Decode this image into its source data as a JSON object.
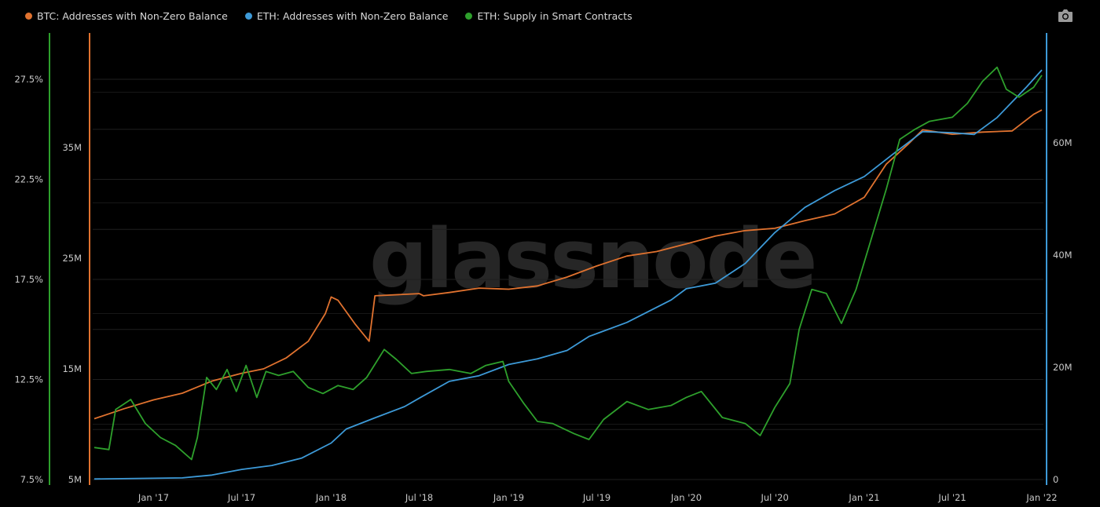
{
  "legend": [
    {
      "label": "BTC: Addresses with Non-Zero Balance",
      "color": "#e0722f"
    },
    {
      "label": "ETH: Addresses with Non-Zero Balance",
      "color": "#3d9ad8"
    },
    {
      "label": "ETH: Supply in Smart Contracts",
      "color": "#2ea02c"
    }
  ],
  "watermark": "glassnode",
  "camera_icon": "camera-icon",
  "chart_data": {
    "type": "line",
    "x_ticks": [
      "Jan '17",
      "Jul '17",
      "Jan '18",
      "Jul '18",
      "Jan '19",
      "Jul '19",
      "Jan '20",
      "Jul '20",
      "Jan '21",
      "Jul '21",
      "Jan '22"
    ],
    "y_axes": {
      "eth_supply_pct": {
        "ticks": [
          "7.5%",
          "12.5%",
          "17.5%",
          "22.5%",
          "27.5%"
        ],
        "range": [
          7.5,
          27.5
        ]
      },
      "btc_addresses": {
        "ticks": [
          "5M",
          "15M",
          "25M",
          "35M"
        ],
        "range": [
          5,
          35
        ]
      },
      "eth_addresses": {
        "ticks": [
          "0",
          "20M",
          "40M",
          "60M"
        ],
        "range": [
          0,
          60
        ]
      }
    },
    "series": [
      {
        "name": "BTC: Addresses with Non-Zero Balance",
        "axis": "btc_addresses",
        "color": "#e0722f",
        "points": [
          [
            "2016-09-01",
            10.5
          ],
          [
            "2016-11-01",
            11.4
          ],
          [
            "2017-01-01",
            12.2
          ],
          [
            "2017-03-01",
            12.8
          ],
          [
            "2017-05-01",
            13.9
          ],
          [
            "2017-07-01",
            14.6
          ],
          [
            "2017-08-15",
            15.0
          ],
          [
            "2017-10-01",
            16.0
          ],
          [
            "2017-11-15",
            17.5
          ],
          [
            "2017-12-20",
            20.0
          ],
          [
            "2018-01-01",
            21.5
          ],
          [
            "2018-01-15",
            21.2
          ],
          [
            "2018-02-20",
            19.0
          ],
          [
            "2018-03-20",
            17.5
          ],
          [
            "2018-04-01",
            21.6
          ],
          [
            "2018-07-01",
            21.8
          ],
          [
            "2018-07-10",
            21.6
          ],
          [
            "2018-09-01",
            21.9
          ],
          [
            "2018-11-01",
            22.3
          ],
          [
            "2019-01-01",
            22.2
          ],
          [
            "2019-03-01",
            22.5
          ],
          [
            "2019-05-01",
            23.3
          ],
          [
            "2019-07-01",
            24.3
          ],
          [
            "2019-09-01",
            25.2
          ],
          [
            "2019-11-01",
            25.6
          ],
          [
            "2020-01-01",
            26.3
          ],
          [
            "2020-03-01",
            27.0
          ],
          [
            "2020-05-01",
            27.5
          ],
          [
            "2020-07-01",
            27.7
          ],
          [
            "2020-09-01",
            28.4
          ],
          [
            "2020-11-01",
            29.0
          ],
          [
            "2021-01-01",
            30.5
          ],
          [
            "2021-02-15",
            33.5
          ],
          [
            "2021-04-01",
            35.3
          ],
          [
            "2021-05-01",
            36.6
          ],
          [
            "2021-06-01",
            36.4
          ],
          [
            "2021-07-01",
            36.2
          ],
          [
            "2021-09-01",
            36.4
          ],
          [
            "2021-11-01",
            36.5
          ],
          [
            "2021-12-15",
            38.0
          ],
          [
            "2022-01-01",
            38.4
          ]
        ]
      },
      {
        "name": "ETH: Addresses with Non-Zero Balance",
        "axis": "eth_addresses",
        "color": "#3d9ad8",
        "points": [
          [
            "2016-09-01",
            0.1
          ],
          [
            "2017-03-01",
            0.3
          ],
          [
            "2017-05-01",
            0.8
          ],
          [
            "2017-07-01",
            1.8
          ],
          [
            "2017-09-01",
            2.5
          ],
          [
            "2017-11-01",
            3.8
          ],
          [
            "2018-01-01",
            6.5
          ],
          [
            "2018-02-01",
            9.0
          ],
          [
            "2018-04-01",
            11.0
          ],
          [
            "2018-06-01",
            13.0
          ],
          [
            "2018-07-01",
            14.5
          ],
          [
            "2018-09-01",
            17.5
          ],
          [
            "2018-11-01",
            18.5
          ],
          [
            "2019-01-01",
            20.5
          ],
          [
            "2019-03-01",
            21.5
          ],
          [
            "2019-05-01",
            23.0
          ],
          [
            "2019-06-15",
            25.5
          ],
          [
            "2019-09-01",
            28.0
          ],
          [
            "2019-12-01",
            32.0
          ],
          [
            "2020-01-01",
            34.0
          ],
          [
            "2020-03-01",
            35.0
          ],
          [
            "2020-05-01",
            38.5
          ],
          [
            "2020-07-01",
            44.0
          ],
          [
            "2020-09-01",
            48.5
          ],
          [
            "2020-11-01",
            51.5
          ],
          [
            "2021-01-01",
            54.0
          ],
          [
            "2021-03-01",
            58.0
          ],
          [
            "2021-05-01",
            62.0
          ],
          [
            "2021-07-01",
            61.8
          ],
          [
            "2021-08-15",
            61.5
          ],
          [
            "2021-10-01",
            64.5
          ],
          [
            "2021-12-01",
            70.0
          ],
          [
            "2022-01-01",
            73.0
          ]
        ]
      },
      {
        "name": "ETH: Supply in Smart Contracts",
        "axis": "eth_supply_pct",
        "color": "#2ea02c",
        "points": [
          [
            "2016-09-01",
            9.1
          ],
          [
            "2016-10-01",
            9.0
          ],
          [
            "2016-10-15",
            11.0
          ],
          [
            "2016-11-15",
            11.5
          ],
          [
            "2016-12-15",
            10.3
          ],
          [
            "2017-01-15",
            9.6
          ],
          [
            "2017-02-15",
            9.2
          ],
          [
            "2017-03-20",
            8.5
          ],
          [
            "2017-04-01",
            9.6
          ],
          [
            "2017-04-20",
            12.6
          ],
          [
            "2017-05-10",
            12.0
          ],
          [
            "2017-06-01",
            13.0
          ],
          [
            "2017-06-20",
            11.9
          ],
          [
            "2017-07-10",
            13.2
          ],
          [
            "2017-08-01",
            11.6
          ],
          [
            "2017-08-20",
            12.9
          ],
          [
            "2017-09-15",
            12.7
          ],
          [
            "2017-10-15",
            12.9
          ],
          [
            "2017-11-15",
            12.1
          ],
          [
            "2017-12-15",
            11.8
          ],
          [
            "2018-01-15",
            12.2
          ],
          [
            "2018-02-15",
            12.0
          ],
          [
            "2018-03-15",
            12.6
          ],
          [
            "2018-04-20",
            14.0
          ],
          [
            "2018-05-15",
            13.5
          ],
          [
            "2018-06-15",
            12.8
          ],
          [
            "2018-07-15",
            12.9
          ],
          [
            "2018-09-01",
            13.0
          ],
          [
            "2018-10-15",
            12.8
          ],
          [
            "2018-11-15",
            13.2
          ],
          [
            "2018-12-20",
            13.4
          ],
          [
            "2019-01-01",
            12.4
          ],
          [
            "2019-02-01",
            11.3
          ],
          [
            "2019-03-01",
            10.4
          ],
          [
            "2019-04-01",
            10.3
          ],
          [
            "2019-05-15",
            9.8
          ],
          [
            "2019-06-15",
            9.5
          ],
          [
            "2019-07-15",
            10.5
          ],
          [
            "2019-09-01",
            11.4
          ],
          [
            "2019-10-15",
            11.0
          ],
          [
            "2019-12-01",
            11.2
          ],
          [
            "2020-01-01",
            11.6
          ],
          [
            "2020-02-01",
            11.9
          ],
          [
            "2020-03-15",
            10.6
          ],
          [
            "2020-05-01",
            10.3
          ],
          [
            "2020-06-01",
            9.7
          ],
          [
            "2020-07-01",
            11.1
          ],
          [
            "2020-08-01",
            12.3
          ],
          [
            "2020-08-20",
            15.0
          ],
          [
            "2020-09-15",
            17.0
          ],
          [
            "2020-10-15",
            16.8
          ],
          [
            "2020-11-15",
            15.3
          ],
          [
            "2020-12-15",
            17.0
          ],
          [
            "2021-01-15",
            19.5
          ],
          [
            "2021-02-15",
            22.0
          ],
          [
            "2021-03-15",
            24.5
          ],
          [
            "2021-04-15",
            25.0
          ],
          [
            "2021-05-15",
            25.4
          ],
          [
            "2021-07-01",
            25.6
          ],
          [
            "2021-08-01",
            26.3
          ],
          [
            "2021-09-01",
            27.4
          ],
          [
            "2021-10-01",
            28.1
          ],
          [
            "2021-10-20",
            27.0
          ],
          [
            "2021-11-15",
            26.6
          ],
          [
            "2021-12-15",
            27.1
          ],
          [
            "2022-01-01",
            27.7
          ]
        ]
      }
    ]
  }
}
